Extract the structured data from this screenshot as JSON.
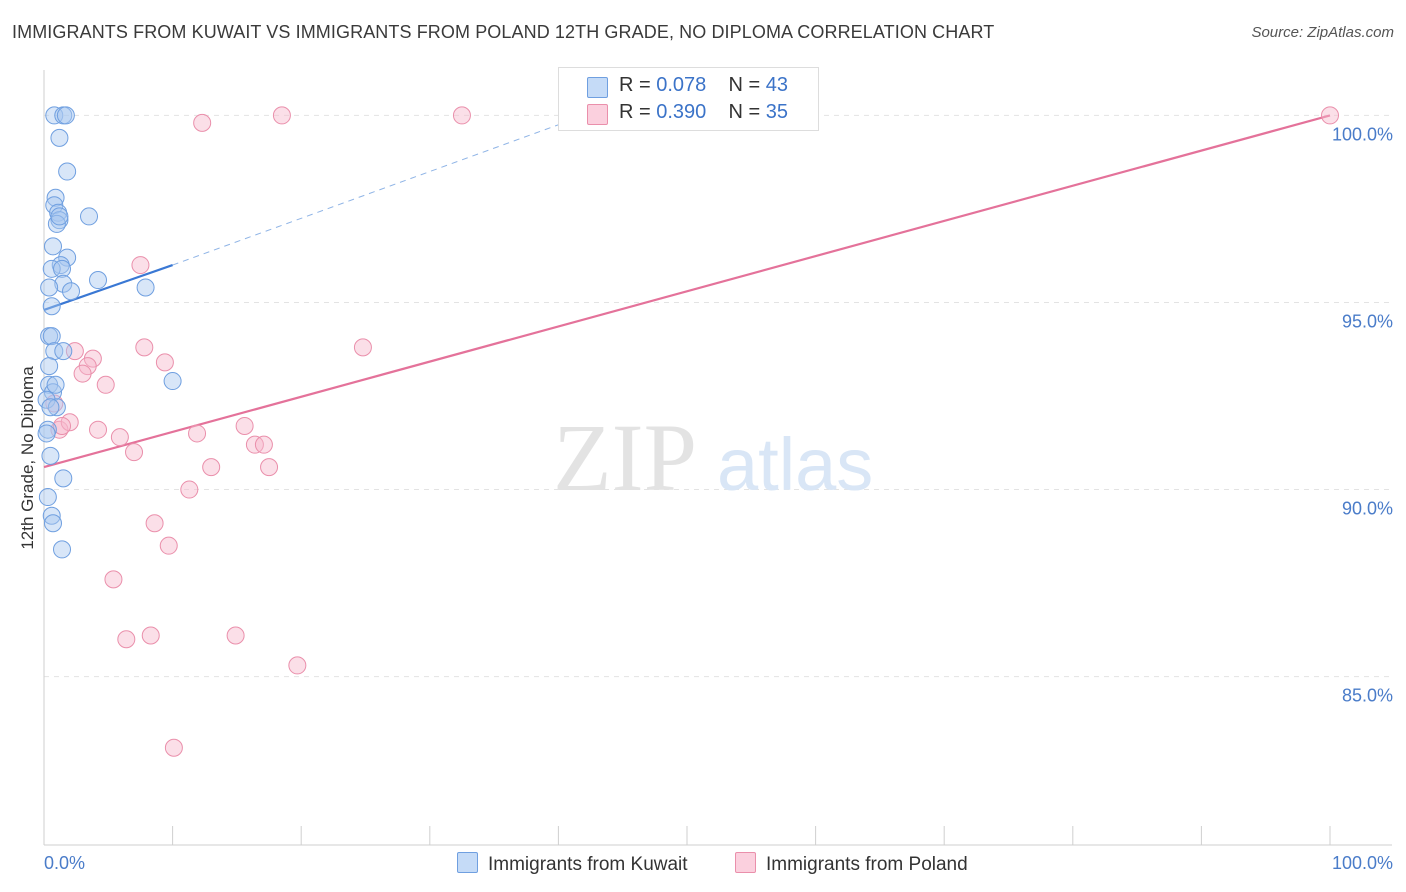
{
  "title": "IMMIGRANTS FROM KUWAIT VS IMMIGRANTS FROM POLAND 12TH GRADE, NO DIPLOMA CORRELATION CHART",
  "source": "Source: ZipAtlas.com",
  "watermark": {
    "zip": "ZIP",
    "atlas": "atlas"
  },
  "legend": {
    "r_label": "R =",
    "n_label": "N =",
    "kuwait": {
      "r": "0.078",
      "n": "43"
    },
    "poland": {
      "r": "0.390",
      "n": "35"
    }
  },
  "colors": {
    "kuwait_fill": "#a9c8f0",
    "kuwait_stroke": "#6f9fe0",
    "kuwait_line": "#3a78d4",
    "poland_fill": "#f7b8cb",
    "poland_stroke": "#ea8fab",
    "poland_line": "#e4729a",
    "tick_text": "#4a7cc9",
    "grid": "#e3e3e3"
  },
  "chart_data": {
    "type": "scatter",
    "title": "IMMIGRANTS FROM KUWAIT VS IMMIGRANTS FROM POLAND 12TH GRADE, NO DIPLOMA CORRELATION CHART",
    "xlabel": "",
    "ylabel": "12th Grade, No Diploma",
    "xlim": [
      0,
      100
    ],
    "ylim": [
      80.5,
      101.0
    ],
    "x_tick_labels": [
      "0.0%",
      "100.0%"
    ],
    "y_ticks": [
      85,
      90,
      95,
      100
    ],
    "y_tick_labels": [
      "85.0%",
      "90.0%",
      "95.0%",
      "100.0%"
    ],
    "grid": true,
    "series": [
      {
        "name": "Immigrants from Kuwait",
        "r": 0.078,
        "n": 43,
        "points": [
          [
            0.8,
            100.0
          ],
          [
            1.5,
            100.0
          ],
          [
            1.7,
            100.0
          ],
          [
            1.2,
            99.4
          ],
          [
            1.8,
            98.5
          ],
          [
            0.9,
            97.8
          ],
          [
            0.8,
            97.6
          ],
          [
            1.1,
            97.4
          ],
          [
            1.2,
            97.2
          ],
          [
            1.0,
            97.1
          ],
          [
            3.5,
            97.3
          ],
          [
            0.7,
            96.5
          ],
          [
            1.8,
            96.2
          ],
          [
            1.3,
            96.0
          ],
          [
            0.6,
            95.9
          ],
          [
            1.4,
            95.9
          ],
          [
            4.2,
            95.6
          ],
          [
            1.5,
            95.5
          ],
          [
            0.4,
            95.4
          ],
          [
            2.1,
            95.3
          ],
          [
            7.9,
            95.4
          ],
          [
            0.6,
            94.9
          ],
          [
            0.4,
            94.1
          ],
          [
            0.6,
            94.1
          ],
          [
            0.8,
            93.7
          ],
          [
            1.5,
            93.7
          ],
          [
            0.4,
            93.3
          ],
          [
            0.4,
            92.8
          ],
          [
            0.7,
            92.6
          ],
          [
            0.2,
            92.4
          ],
          [
            1.0,
            92.2
          ],
          [
            10.0,
            92.9
          ],
          [
            0.3,
            91.6
          ],
          [
            0.5,
            90.9
          ],
          [
            1.5,
            90.3
          ],
          [
            0.3,
            89.8
          ],
          [
            0.6,
            89.3
          ],
          [
            0.7,
            89.1
          ],
          [
            1.4,
            88.4
          ],
          [
            0.2,
            91.5
          ],
          [
            0.9,
            92.8
          ],
          [
            0.5,
            92.2
          ],
          [
            1.2,
            97.3
          ]
        ],
        "trend": {
          "x": [
            0,
            10
          ],
          "y": [
            94.8,
            96.0
          ],
          "dashed_extension_to": [
            42,
            100.0
          ]
        }
      },
      {
        "name": "Immigrants from Poland",
        "r": 0.39,
        "n": 35,
        "points": [
          [
            12.3,
            99.8
          ],
          [
            18.5,
            100.0
          ],
          [
            32.5,
            100.0
          ],
          [
            100.0,
            100.0
          ],
          [
            7.5,
            96.0
          ],
          [
            7.8,
            93.8
          ],
          [
            9.4,
            93.4
          ],
          [
            24.8,
            93.8
          ],
          [
            2.4,
            93.7
          ],
          [
            3.8,
            93.5
          ],
          [
            3.4,
            93.3
          ],
          [
            3.0,
            93.1
          ],
          [
            4.8,
            92.8
          ],
          [
            0.8,
            92.3
          ],
          [
            1.2,
            91.6
          ],
          [
            2.0,
            91.8
          ],
          [
            1.4,
            91.7
          ],
          [
            4.2,
            91.6
          ],
          [
            5.9,
            91.4
          ],
          [
            11.9,
            91.5
          ],
          [
            15.6,
            91.7
          ],
          [
            16.4,
            91.2
          ],
          [
            17.1,
            91.2
          ],
          [
            7.0,
            91.0
          ],
          [
            13.0,
            90.6
          ],
          [
            17.5,
            90.6
          ],
          [
            11.3,
            90.0
          ],
          [
            8.6,
            89.1
          ],
          [
            9.7,
            88.5
          ],
          [
            5.4,
            87.6
          ],
          [
            6.4,
            86.0
          ],
          [
            8.3,
            86.1
          ],
          [
            14.9,
            86.1
          ],
          [
            19.7,
            85.3
          ],
          [
            10.1,
            83.1
          ]
        ],
        "trend": {
          "x": [
            0,
            100
          ],
          "y": [
            90.6,
            100.0
          ]
        }
      }
    ]
  },
  "bottom_legend": {
    "kuwait": "Immigrants from Kuwait",
    "poland": "Immigrants from Poland"
  }
}
